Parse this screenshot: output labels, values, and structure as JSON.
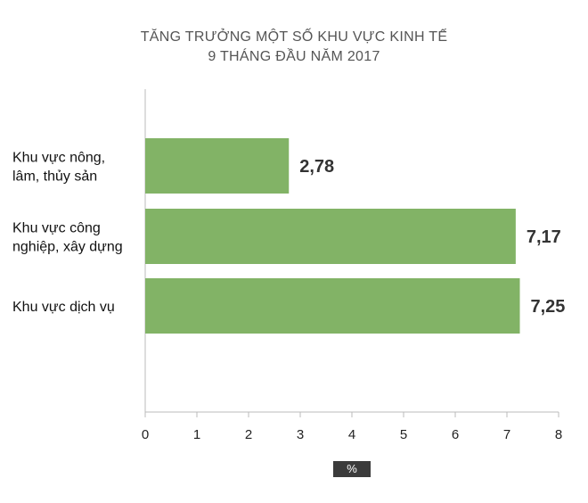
{
  "chart_data": {
    "type": "bar",
    "orientation": "horizontal",
    "title_lines": [
      "TĂNG TRƯỞNG MỘT SỐ KHU VỰC KINH TẾ",
      "9 THÁNG ĐẦU NĂM 2017"
    ],
    "categories": [
      [
        "Khu vực nông,",
        "lâm, thủy sản"
      ],
      [
        "Khu vực công",
        "nghiệp, xây dựng"
      ],
      [
        "Khu vực dịch vụ"
      ]
    ],
    "values": [
      2.78,
      7.17,
      7.25
    ],
    "value_labels": [
      "2,78",
      "7,17",
      "7,25"
    ],
    "xlim": [
      0,
      8
    ],
    "ticks": [
      "0",
      "1",
      "2",
      "3",
      "4",
      "5",
      "6",
      "7",
      "8"
    ],
    "xlabel": "%",
    "bar_color": "#82b366",
    "grid": false
  }
}
